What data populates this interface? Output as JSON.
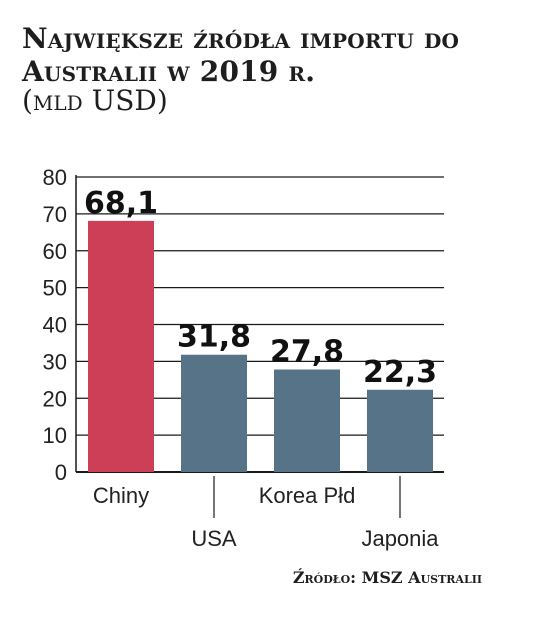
{
  "chart_data": {
    "type": "bar",
    "title": "Największe źródła importu do Australii w 2019 r.",
    "subtitle": "(mld USD)",
    "categories": [
      "Chiny",
      "USA",
      "Korea Płd",
      "Japonia"
    ],
    "values": [
      68.1,
      31.8,
      27.8,
      22.3
    ],
    "value_labels": [
      "68,1",
      "31,8",
      "27,8",
      "22,3"
    ],
    "yticks": [
      0,
      10,
      20,
      30,
      40,
      50,
      60,
      70,
      80
    ],
    "ylim": [
      0,
      80
    ],
    "grid": true,
    "colors": [
      "#cc3f57",
      "#577388",
      "#577388",
      "#577388"
    ],
    "label_rows": [
      0,
      1,
      0,
      1
    ],
    "source": "Źródło: MSZ Australii"
  }
}
